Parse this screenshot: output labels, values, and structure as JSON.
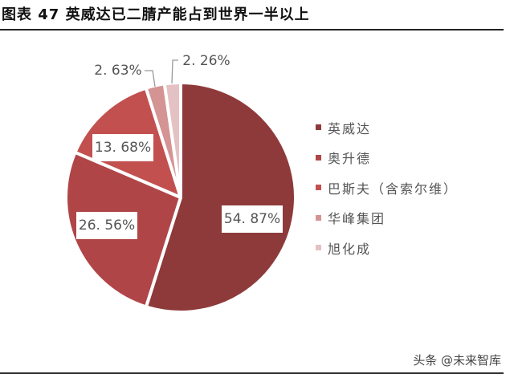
{
  "title": "图表 47  英威达已二腈产能占到世界一半以上",
  "watermark": "头条 @未来智库",
  "chart_data": {
    "type": "pie",
    "title": "图表 47 英威达已二腈产能占到世界一半以上",
    "categories": [
      "英威达",
      "奥升德",
      "巴斯夫（含索尔维）",
      "华峰集团",
      "旭化成"
    ],
    "values": [
      54.87,
      26.56,
      13.68,
      2.63,
      2.26
    ],
    "value_labels": [
      "54.87%",
      "26.56%",
      "13.68%",
      "2.63%",
      "2.26%"
    ],
    "colors": [
      "#8e3a3a",
      "#b04547",
      "#c2504f",
      "#d49494",
      "#e4c1c3"
    ],
    "legend_position": "right",
    "start_angle_deg": 0,
    "direction": "clockwise"
  },
  "legend": [
    {
      "label": "英威达",
      "color": "#8e3a3a"
    },
    {
      "label": "奥升德",
      "color": "#b04547"
    },
    {
      "label": "巴斯夫（含索尔维）",
      "color": "#c2504f"
    },
    {
      "label": "华峰集团",
      "color": "#d49494"
    },
    {
      "label": "旭化成",
      "color": "#e4c1c3"
    }
  ],
  "labels": {
    "l0": "54. 87%",
    "l1": "26. 56%",
    "l2": "13. 68%",
    "l3": "2. 63%",
    "l4": "2. 26%"
  }
}
